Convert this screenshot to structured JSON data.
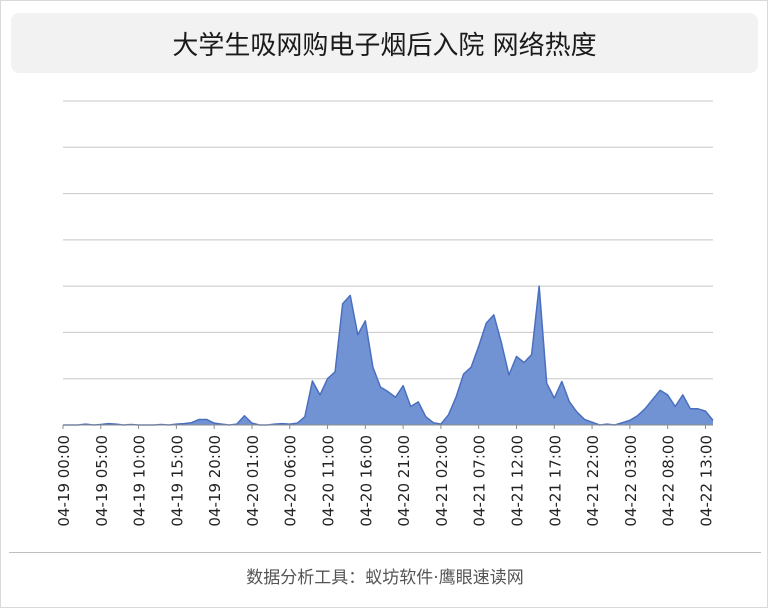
{
  "title": "大学生吸网购电子烟后入院 网络热度",
  "footer": "数据分析工具：蚁坊软件·鹰眼速读网",
  "colors": {
    "area_fill": "#7193d4",
    "area_stroke": "#4a6fbf",
    "grid": "#c8c8c8",
    "axis": "#8c8c8c",
    "title_bg": "#f2f2f2"
  },
  "chart_data": {
    "type": "area",
    "title": "大学生吸网购电子烟后入院 网络热度",
    "xlabel": "",
    "ylabel": "",
    "y_ticks_visible": false,
    "grid": true,
    "ylim": [
      0,
      700
    ],
    "x_tick_labels": [
      "04-19 00:00",
      "04-19 05:00",
      "04-19 10:00",
      "04-19 15:00",
      "04-19 20:00",
      "04-20 01:00",
      "04-20 06:00",
      "04-20 11:00",
      "04-20 16:00",
      "04-20 21:00",
      "04-21 02:00",
      "04-21 07:00",
      "04-21 12:00",
      "04-21 17:00",
      "04-21 22:00",
      "04-22 03:00",
      "04-22 08:00",
      "04-22 13:00"
    ],
    "tick_every": 5,
    "series": [
      {
        "values": [
          0,
          0,
          0,
          2,
          0,
          1,
          3,
          2,
          0,
          1,
          0,
          0,
          0,
          1,
          0,
          2,
          3,
          5,
          12,
          12,
          4,
          2,
          0,
          2,
          20,
          4,
          0,
          0,
          2,
          3,
          2,
          4,
          18,
          95,
          65,
          100,
          115,
          262,
          280,
          195,
          225,
          125,
          82,
          72,
          60,
          85,
          40,
          50,
          18,
          5,
          2,
          22,
          60,
          110,
          125,
          170,
          220,
          238,
          178,
          108,
          148,
          135,
          152,
          300,
          90,
          58,
          94,
          50,
          28,
          12,
          6,
          0,
          2,
          0,
          5,
          10,
          20,
          35,
          55,
          75,
          65,
          40,
          65,
          35,
          35,
          30,
          10
        ]
      }
    ]
  }
}
